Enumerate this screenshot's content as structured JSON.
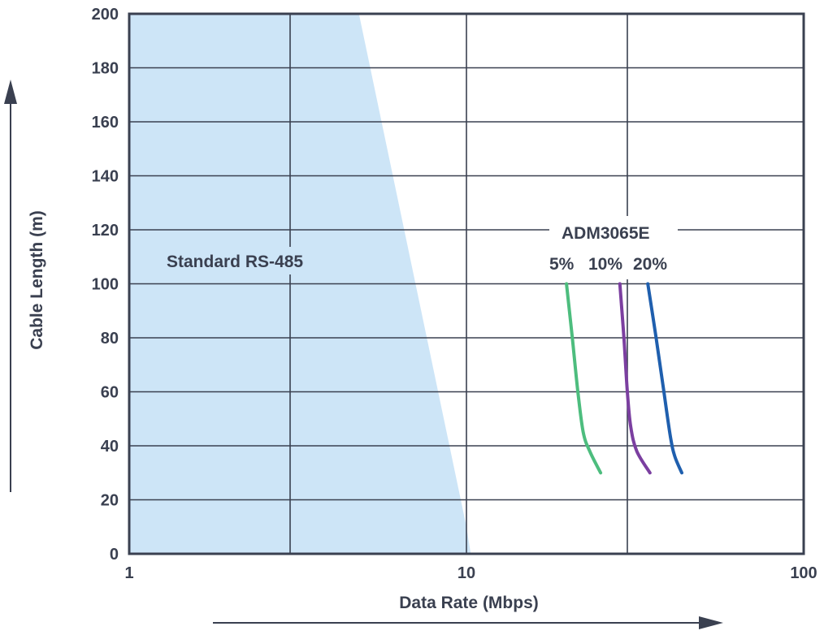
{
  "chart_data": {
    "type": "line",
    "title": "",
    "xlabel": "Data Rate (Mbps)",
    "ylabel": "Cable Length (m)",
    "x_scale": "log",
    "xlim": [
      1,
      100
    ],
    "ylim": [
      0,
      200
    ],
    "x_ticks": [
      "1",
      "10",
      "100"
    ],
    "y_ticks": [
      "0",
      "20",
      "40",
      "60",
      "80",
      "100",
      "120",
      "140",
      "160",
      "180",
      "200"
    ],
    "grid": true,
    "region": {
      "label": "Standard RS-485",
      "color": "#cde5f7",
      "boundary": [
        [
          1,
          0
        ],
        [
          10.3,
          0
        ],
        [
          10,
          10
        ],
        [
          4.8,
          200
        ],
        [
          1,
          200
        ]
      ]
    },
    "group_label": "ADM3065E",
    "series": [
      {
        "name": "5%",
        "color": "#4dbd7e",
        "points": [
          [
            19.8,
            100
          ],
          [
            20.6,
            80
          ],
          [
            21.4,
            60
          ],
          [
            22.2,
            45
          ],
          [
            23.2,
            38
          ],
          [
            25.0,
            30
          ]
        ]
      },
      {
        "name": "10%",
        "color": "#7b3fa0",
        "points": [
          [
            28.5,
            100
          ],
          [
            29.3,
            80
          ],
          [
            30.0,
            60
          ],
          [
            30.7,
            47
          ],
          [
            32.0,
            38
          ],
          [
            35.0,
            30
          ]
        ]
      },
      {
        "name": "20%",
        "color": "#1f5fae",
        "points": [
          [
            34.5,
            100
          ],
          [
            36.5,
            80
          ],
          [
            38.5,
            60
          ],
          [
            40.3,
            43
          ],
          [
            41.5,
            36
          ],
          [
            43.5,
            30
          ]
        ]
      }
    ]
  }
}
